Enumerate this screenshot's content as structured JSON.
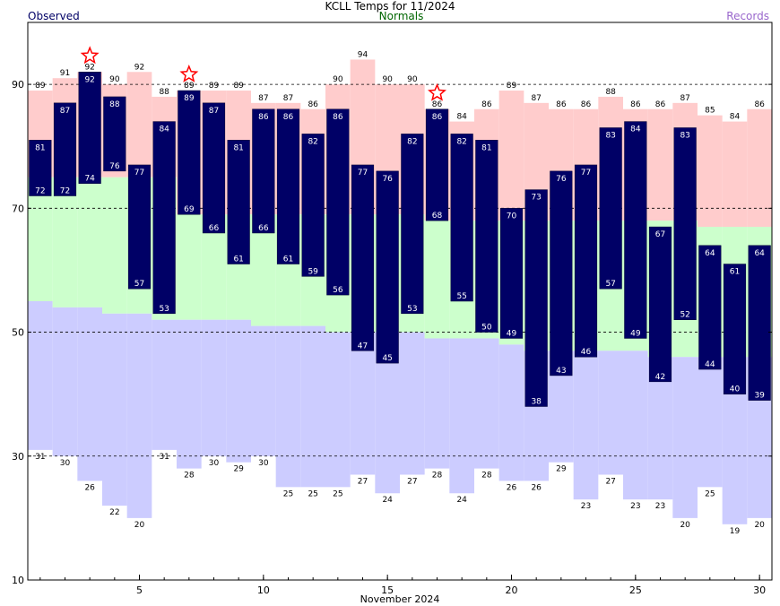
{
  "chart_data": {
    "type": "bar",
    "title": "KCLL Temps for 11/2024",
    "xlabel": "November 2024",
    "ylabel": "",
    "ylim": [
      10,
      100
    ],
    "yticks": [
      10,
      30,
      50,
      70,
      90
    ],
    "xticks": [
      5,
      10,
      15,
      20,
      25,
      30
    ],
    "legend": {
      "observed": "Observed",
      "normals": "Normals",
      "records": "Records"
    },
    "colors": {
      "observed": "#000066",
      "normals": "#ccffcc",
      "record_high": "#ffcccc",
      "record_low": "#ccccff",
      "star": "#ff0000"
    },
    "days": [
      1,
      2,
      3,
      4,
      5,
      6,
      7,
      8,
      9,
      10,
      11,
      12,
      13,
      14,
      15,
      16,
      17,
      18,
      19,
      20,
      21,
      22,
      23,
      24,
      25,
      26,
      27,
      28,
      29,
      30
    ],
    "observed_high": [
      81,
      87,
      92,
      88,
      77,
      84,
      89,
      87,
      81,
      86,
      86,
      82,
      86,
      77,
      76,
      82,
      86,
      82,
      81,
      70,
      73,
      76,
      77,
      83,
      84,
      67,
      83,
      64,
      61,
      64
    ],
    "observed_low": [
      72,
      72,
      74,
      76,
      57,
      53,
      69,
      66,
      61,
      66,
      61,
      59,
      56,
      47,
      45,
      53,
      68,
      55,
      50,
      49,
      38,
      43,
      46,
      57,
      49,
      42,
      52,
      44,
      40,
      39
    ],
    "normal_high": [
      75,
      75,
      75,
      75,
      75,
      75,
      69,
      69,
      69,
      69,
      69,
      69,
      69,
      69,
      69,
      69,
      68,
      68,
      68,
      68,
      68,
      68,
      68,
      68,
      68,
      68,
      68,
      67,
      67,
      67
    ],
    "normal_low": [
      55,
      54,
      54,
      53,
      53,
      52,
      52,
      52,
      52,
      51,
      51,
      51,
      50,
      50,
      50,
      50,
      49,
      49,
      49,
      48,
      47,
      47,
      47,
      47,
      47,
      46,
      46,
      46,
      46,
      46
    ],
    "record_high": [
      89,
      91,
      92,
      90,
      92,
      88,
      89,
      89,
      89,
      87,
      87,
      86,
      90,
      94,
      90,
      90,
      86,
      84,
      86,
      89,
      87,
      86,
      86,
      88,
      86,
      86,
      87,
      85,
      84,
      86
    ],
    "record_low": [
      31,
      30,
      26,
      22,
      20,
      31,
      28,
      30,
      29,
      30,
      25,
      25,
      25,
      27,
      24,
      27,
      28,
      24,
      28,
      26,
      26,
      29,
      23,
      27,
      23,
      23,
      20,
      25,
      19,
      20
    ],
    "record_high_set": [
      3,
      7,
      17
    ]
  }
}
